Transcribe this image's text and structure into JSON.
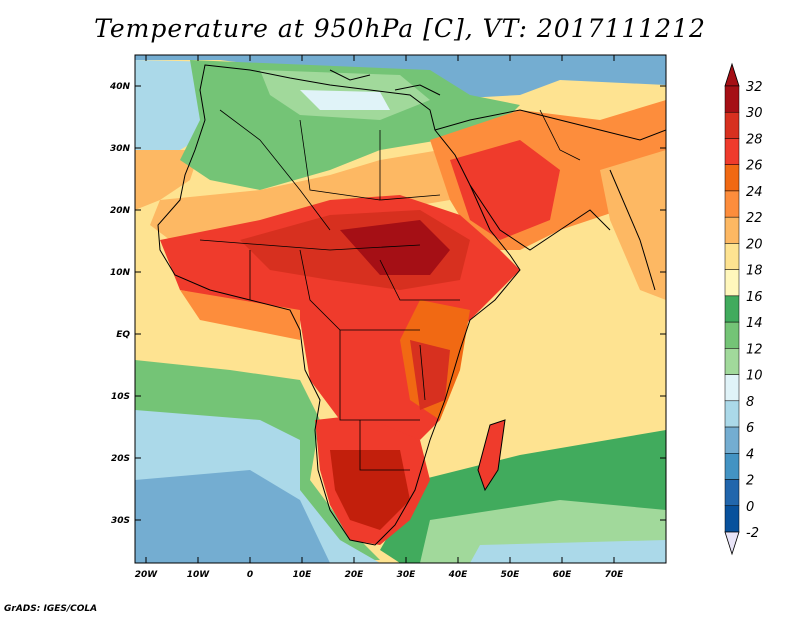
{
  "title": "Temperature at 950hPa [C], VT: 2017111212",
  "credit": "GrADS: IGES/COLA",
  "axes": {
    "x_ticks": [
      "20W",
      "10W",
      "0",
      "10E",
      "20E",
      "30E",
      "40E",
      "50E",
      "60E",
      "70E"
    ],
    "y_ticks": [
      "40N",
      "30N",
      "20N",
      "10N",
      "EQ",
      "10S",
      "20S",
      "30S"
    ]
  },
  "colorbar": {
    "labels": [
      "32",
      "30",
      "28",
      "26",
      "24",
      "22",
      "20",
      "18",
      "16",
      "14",
      "12",
      "10",
      "8",
      "6",
      "4",
      "2",
      "0",
      "-2"
    ],
    "colors": [
      "#a50f15",
      "#d7301f",
      "#ef3b2c",
      "#f16913",
      "#fd8d3c",
      "#fdb863",
      "#fee391",
      "#fff7bc",
      "#41ab5d",
      "#74c476",
      "#a1d99b",
      "#e0f3f8",
      "#abd9e9",
      "#74add1",
      "#4393c3",
      "#2166ac",
      "#08519c",
      "#081d58"
    ]
  },
  "colors": {
    "sea_warm": "#fee391",
    "land_hot": "#e34a33",
    "land_very_hot": "#c21f0c",
    "cool_green": "#74c476",
    "cold_blue": "#74add1",
    "border": "#000000"
  }
}
